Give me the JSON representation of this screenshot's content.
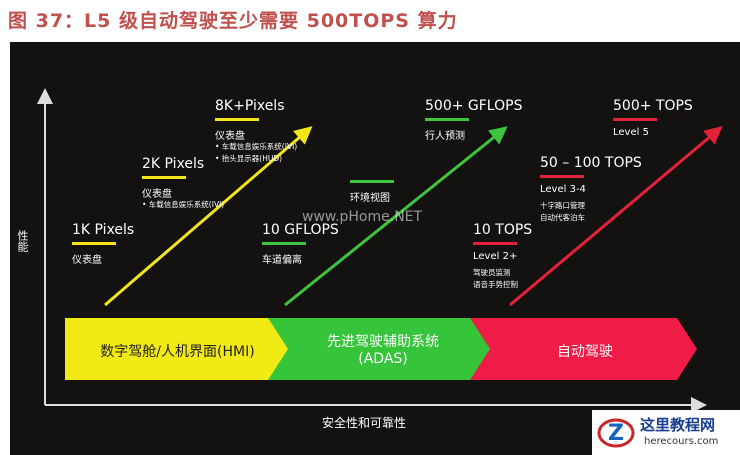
{
  "title": "图 37：L5 级自动驾驶至少需要 500TOPS 算力",
  "axes": {
    "y_label": "性能",
    "x_label": "安全性和可靠性"
  },
  "stages": [
    {
      "lines": [
        "数字驾舱/人机界面(HMI)"
      ]
    },
    {
      "lines": [
        "先进驾驶辅助系统",
        "(ADAS)"
      ]
    },
    {
      "lines": [
        "自动驾驶"
      ]
    }
  ],
  "milestones": [
    {
      "heading": "1K Pixels",
      "items": [
        "仪表盘"
      ]
    },
    {
      "heading": "2K Pixels",
      "items": [
        "仪表盘",
        "• 车载信息娱乐系统(IVI)"
      ]
    },
    {
      "heading": "8K+Pixels",
      "items": [
        "仪表盘",
        "• 车载信息娱乐系统(IVI)",
        "• 抬头显示器(HUD)"
      ]
    },
    {
      "heading": "10 GFLOPS",
      "items": [
        "车道偏离"
      ]
    },
    {
      "items": [
        "环境视图"
      ]
    },
    {
      "heading": "500+ GFLOPS",
      "items": [
        "行人预测"
      ]
    },
    {
      "heading": "10 TOPS",
      "items": [
        "Level 2+",
        "驾驶员监测",
        "语音手势控制"
      ]
    },
    {
      "heading": "50 – 100 TOPS",
      "items": [
        "Level 3-4",
        "十字路口管理",
        "自动代客泊车"
      ]
    },
    {
      "heading": "500+ TOPS",
      "items": [
        "Level 5"
      ]
    }
  ],
  "watermark": "www.pHome.NET",
  "logo": {
    "name": "这里教程网",
    "url": "herecours.com"
  }
}
